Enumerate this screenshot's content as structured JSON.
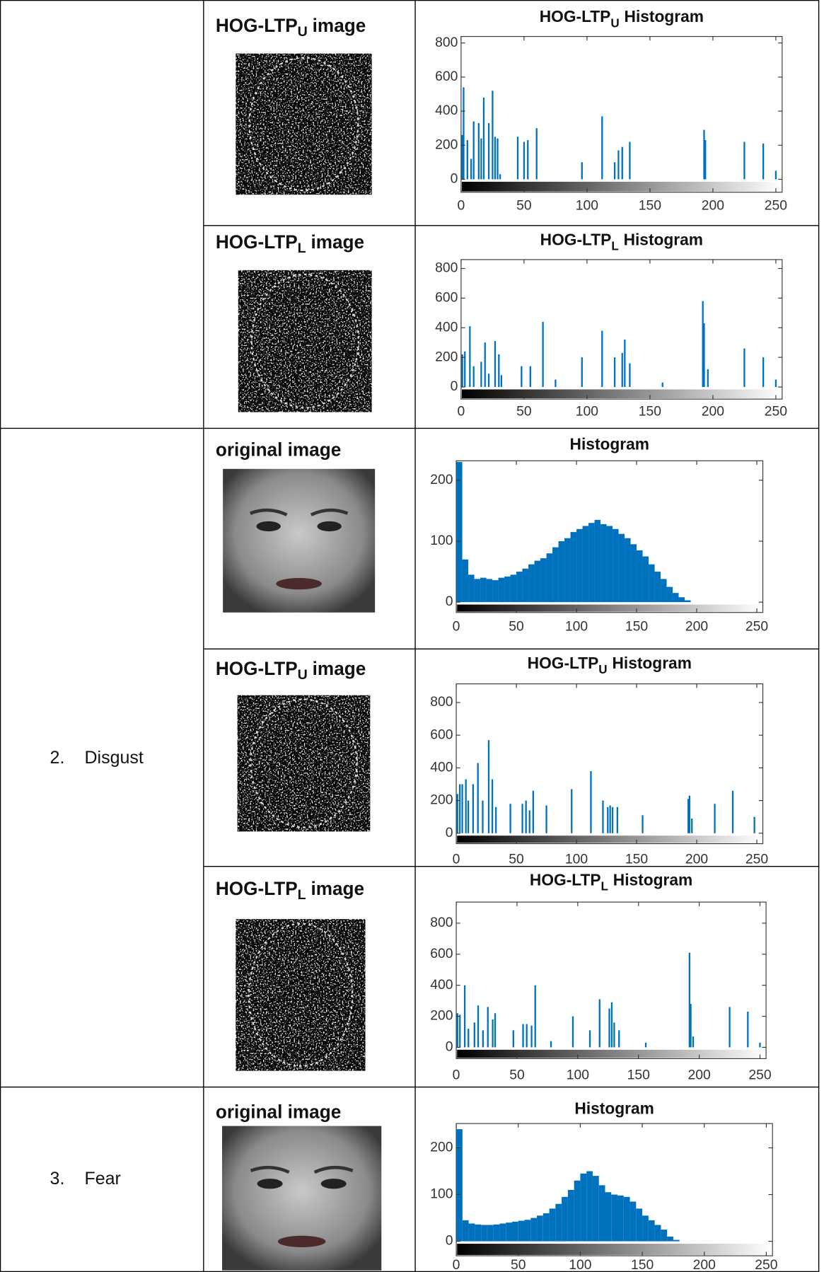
{
  "table": {
    "rows": [
      {
        "cells": [
          {
            "image_title": "HOG-LTP",
            "image_title_sub": "U",
            "image_title_tail": "image",
            "chart": {
              "type": "bar",
              "title": "HOG-LTP",
              "title_sub": "U",
              "title_tail": "Histogram",
              "color": "#0072bd",
              "x": [
                1,
                2,
                5,
                8,
                10,
                14,
                16,
                18,
                22,
                25,
                27,
                29,
                31,
                45,
                50,
                53,
                60,
                96,
                112,
                122,
                125,
                128,
                134,
                193,
                194,
                225,
                240,
                250
              ],
              "values": [
                260,
                540,
                230,
                120,
                340,
                330,
                240,
                480,
                330,
                520,
                250,
                240,
                30,
                250,
                220,
                230,
                300,
                100,
                370,
                100,
                170,
                190,
                220,
                290,
                230,
                220,
                210,
                50
              ],
              "xlim": [
                0,
                255
              ],
              "ylim": [
                -76,
                838
              ],
              "xticks": [
                0,
                50,
                100,
                150,
                200,
                250
              ],
              "yticks": [
                0,
                200,
                400,
                600,
                800
              ]
            }
          },
          {
            "image_title": "HOG-LTP",
            "image_title_sub": "L",
            "image_title_tail": "image",
            "chart": {
              "type": "bar",
              "title": "HOG-LTP",
              "title_sub": "L",
              "title_tail": "Histogram",
              "color": "#0072bd",
              "x": [
                1,
                3,
                7,
                10,
                16,
                19,
                22,
                27,
                30,
                32,
                48,
                55,
                65,
                75,
                96,
                112,
                122,
                128,
                130,
                134,
                160,
                192,
                193,
                196,
                225,
                240,
                250
              ],
              "values": [
                220,
                240,
                410,
                140,
                170,
                300,
                90,
                310,
                220,
                80,
                140,
                140,
                440,
                50,
                200,
                380,
                200,
                230,
                320,
                160,
                30,
                580,
                430,
                120,
                260,
                200,
                50
              ],
              "xlim": [
                0,
                255
              ],
              "ylim": [
                -82,
                860
              ],
              "xticks": [
                0,
                50,
                100,
                150,
                200,
                250
              ],
              "yticks": [
                0,
                200,
                400,
                600,
                800
              ]
            }
          }
        ]
      },
      {
        "number": "2.",
        "label": "Disgust",
        "cells": [
          {
            "image_title": "original image",
            "chart": {
              "type": "histogram",
              "title": "Histogram",
              "color": "#0072bd",
              "bins": [
                0,
                5,
                10,
                15,
                20,
                25,
                30,
                35,
                40,
                45,
                50,
                55,
                60,
                65,
                70,
                75,
                80,
                85,
                90,
                95,
                100,
                105,
                110,
                115,
                120,
                125,
                130,
                135,
                140,
                145,
                150,
                155,
                160,
                165,
                170,
                175,
                180,
                185,
                190,
                195,
                200,
                205,
                210,
                215,
                220,
                225,
                230,
                235,
                240,
                245,
                250,
                255
              ],
              "values": [
                230,
                70,
                45,
                38,
                40,
                38,
                36,
                40,
                42,
                45,
                50,
                55,
                62,
                68,
                72,
                80,
                90,
                100,
                105,
                115,
                120,
                125,
                130,
                135,
                128,
                125,
                120,
                112,
                105,
                95,
                85,
                75,
                62,
                50,
                38,
                25,
                15,
                8,
                3,
                0,
                0,
                0,
                0,
                0,
                0,
                0,
                0,
                0,
                0,
                0,
                0
              ],
              "xlim": [
                0,
                255
              ],
              "ylim": [
                -17,
                232
              ],
              "xticks": [
                0,
                50,
                100,
                150,
                200,
                250
              ],
              "yticks": [
                0,
                100,
                200
              ]
            }
          },
          {
            "image_title": "HOG-LTP",
            "image_title_sub": "U",
            "image_title_tail": "image",
            "chart": {
              "type": "bar",
              "title": "HOG-LTP",
              "title_sub": "U",
              "title_tail": "Histogram",
              "color": "#0072bd",
              "x": [
                1,
                3,
                5,
                8,
                10,
                14,
                18,
                22,
                27,
                30,
                33,
                45,
                55,
                58,
                61,
                64,
                75,
                96,
                112,
                122,
                126,
                128,
                130,
                134,
                155,
                193,
                194,
                196,
                215,
                230,
                248
              ],
              "values": [
                240,
                300,
                300,
                330,
                200,
                300,
                430,
                200,
                570,
                330,
                160,
                180,
                180,
                200,
                140,
                260,
                170,
                270,
                380,
                200,
                160,
                170,
                160,
                160,
                110,
                210,
                230,
                90,
                180,
                260,
                100
              ],
              "xlim": [
                0,
                255
              ],
              "ylim": [
                -64,
                914
              ],
              "xticks": [
                0,
                50,
                100,
                150,
                200,
                250
              ],
              "yticks": [
                0,
                200,
                400,
                600,
                800
              ]
            }
          },
          {
            "image_title": "HOG-LTP",
            "image_title_sub": "L",
            "image_title_tail": "image",
            "chart": {
              "type": "bar",
              "title": "HOG-LTP",
              "title_sub": "L",
              "title_tail": "Histogram",
              "color": "#0072bd",
              "x": [
                1,
                3,
                7,
                10,
                15,
                18,
                22,
                26,
                30,
                32,
                47,
                55,
                58,
                62,
                65,
                78,
                96,
                110,
                118,
                126,
                128,
                130,
                134,
                156,
                192,
                193,
                195,
                225,
                240,
                250
              ],
              "values": [
                220,
                210,
                400,
                120,
                160,
                270,
                110,
                260,
                180,
                220,
                110,
                150,
                150,
                140,
                400,
                40,
                200,
                110,
                310,
                250,
                290,
                160,
                110,
                30,
                610,
                280,
                70,
                260,
                230,
                30
              ],
              "xlim": [
                0,
                255
              ],
              "ylim": [
                -73,
                936
              ],
              "xticks": [
                0,
                50,
                100,
                150,
                200,
                250
              ],
              "yticks": [
                0,
                200,
                400,
                600,
                800
              ]
            }
          }
        ]
      },
      {
        "number": "3.",
        "label": "Fear",
        "cells": [
          {
            "image_title": "original image",
            "chart": {
              "type": "histogram",
              "title": "Histogram",
              "color": "#0072bd",
              "bins": [
                0,
                5,
                10,
                15,
                20,
                25,
                30,
                35,
                40,
                45,
                50,
                55,
                60,
                65,
                70,
                75,
                80,
                85,
                90,
                95,
                100,
                105,
                110,
                115,
                120,
                125,
                130,
                135,
                140,
                145,
                150,
                155,
                160,
                165,
                170,
                175,
                180,
                185,
                190,
                195,
                200,
                205,
                210,
                215,
                220,
                225,
                230,
                235,
                240,
                245,
                250,
                255
              ],
              "values": [
                240,
                45,
                38,
                36,
                35,
                35,
                36,
                38,
                40,
                42,
                44,
                46,
                50,
                55,
                60,
                70,
                80,
                95,
                110,
                130,
                145,
                150,
                140,
                120,
                105,
                100,
                98,
                95,
                85,
                70,
                55,
                45,
                35,
                25,
                10,
                3,
                0,
                0,
                0,
                0,
                0,
                0,
                0,
                0,
                0,
                0,
                0,
                0,
                0,
                0,
                0
              ],
              "xlim": [
                0,
                255
              ],
              "ylim": [
                -31,
                252
              ],
              "xticks": [
                0,
                50,
                100,
                150,
                200,
                250
              ],
              "yticks": [
                0,
                100,
                200
              ]
            }
          }
        ]
      }
    ]
  }
}
